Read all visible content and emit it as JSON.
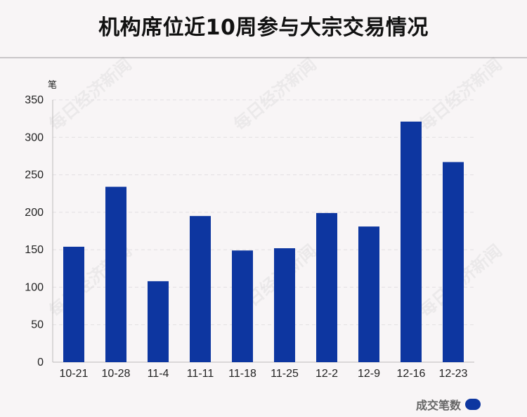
{
  "title": "机构席位近10周参与大宗交易情况",
  "watermark_text": "每日经济新闻",
  "colors": {
    "bar": "#0d36a0",
    "grid": "#e2dfe1",
    "axis": "#bdbabb",
    "background": "#f8f5f6"
  },
  "chart_data": {
    "type": "bar",
    "ylabel": "笔",
    "ylim": [
      0,
      350
    ],
    "yticks": [
      0,
      50,
      100,
      150,
      200,
      250,
      300,
      350
    ],
    "categories": [
      "10-21",
      "10-28",
      "11-4",
      "11-11",
      "11-18",
      "11-25",
      "12-2",
      "12-9",
      "12-16",
      "12-23"
    ],
    "series": [
      {
        "name": "成交笔数",
        "values": [
          154,
          234,
          108,
          195,
          149,
          152,
          199,
          181,
          321,
          267
        ]
      }
    ],
    "legend_position": "bottom-right",
    "grid": true
  }
}
